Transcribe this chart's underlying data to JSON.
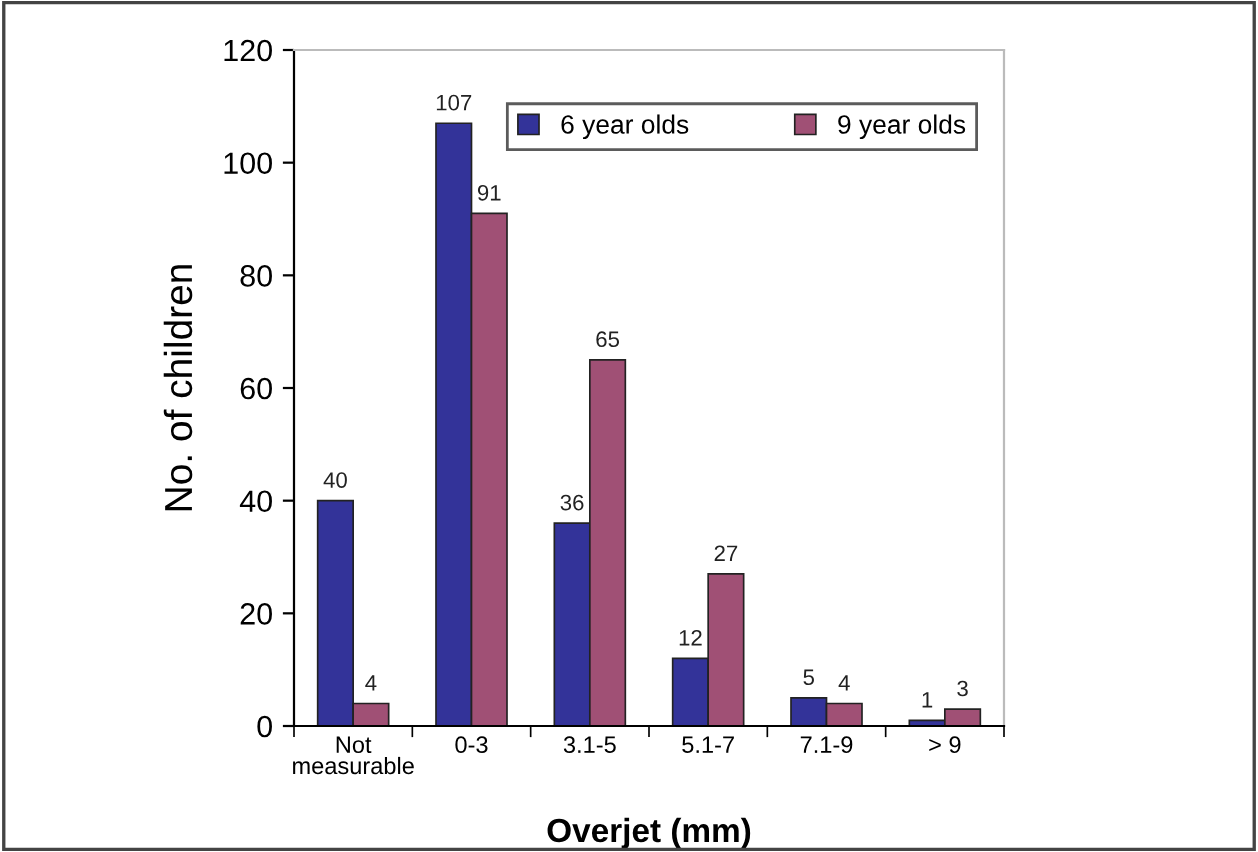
{
  "chart_data": {
    "type": "bar",
    "xlabel": "Overjet (mm)",
    "ylabel": "No. of children",
    "categories": [
      "Not\nmeasurable",
      "0-3",
      "3.1-5",
      "5.1-7",
      "7.1-9",
      "> 9"
    ],
    "series": [
      {
        "name": "6 year olds",
        "color": "#333399",
        "values": [
          40,
          107,
          36,
          12,
          5,
          1
        ]
      },
      {
        "name": "9 year olds",
        "color": "#a05075",
        "values": [
          4,
          91,
          65,
          27,
          4,
          3
        ]
      }
    ],
    "ylim": [
      0,
      120
    ],
    "yticks": [
      0,
      20,
      40,
      60,
      80,
      100,
      120
    ],
    "grid": false,
    "legend": "top right",
    "data_labels": true
  }
}
